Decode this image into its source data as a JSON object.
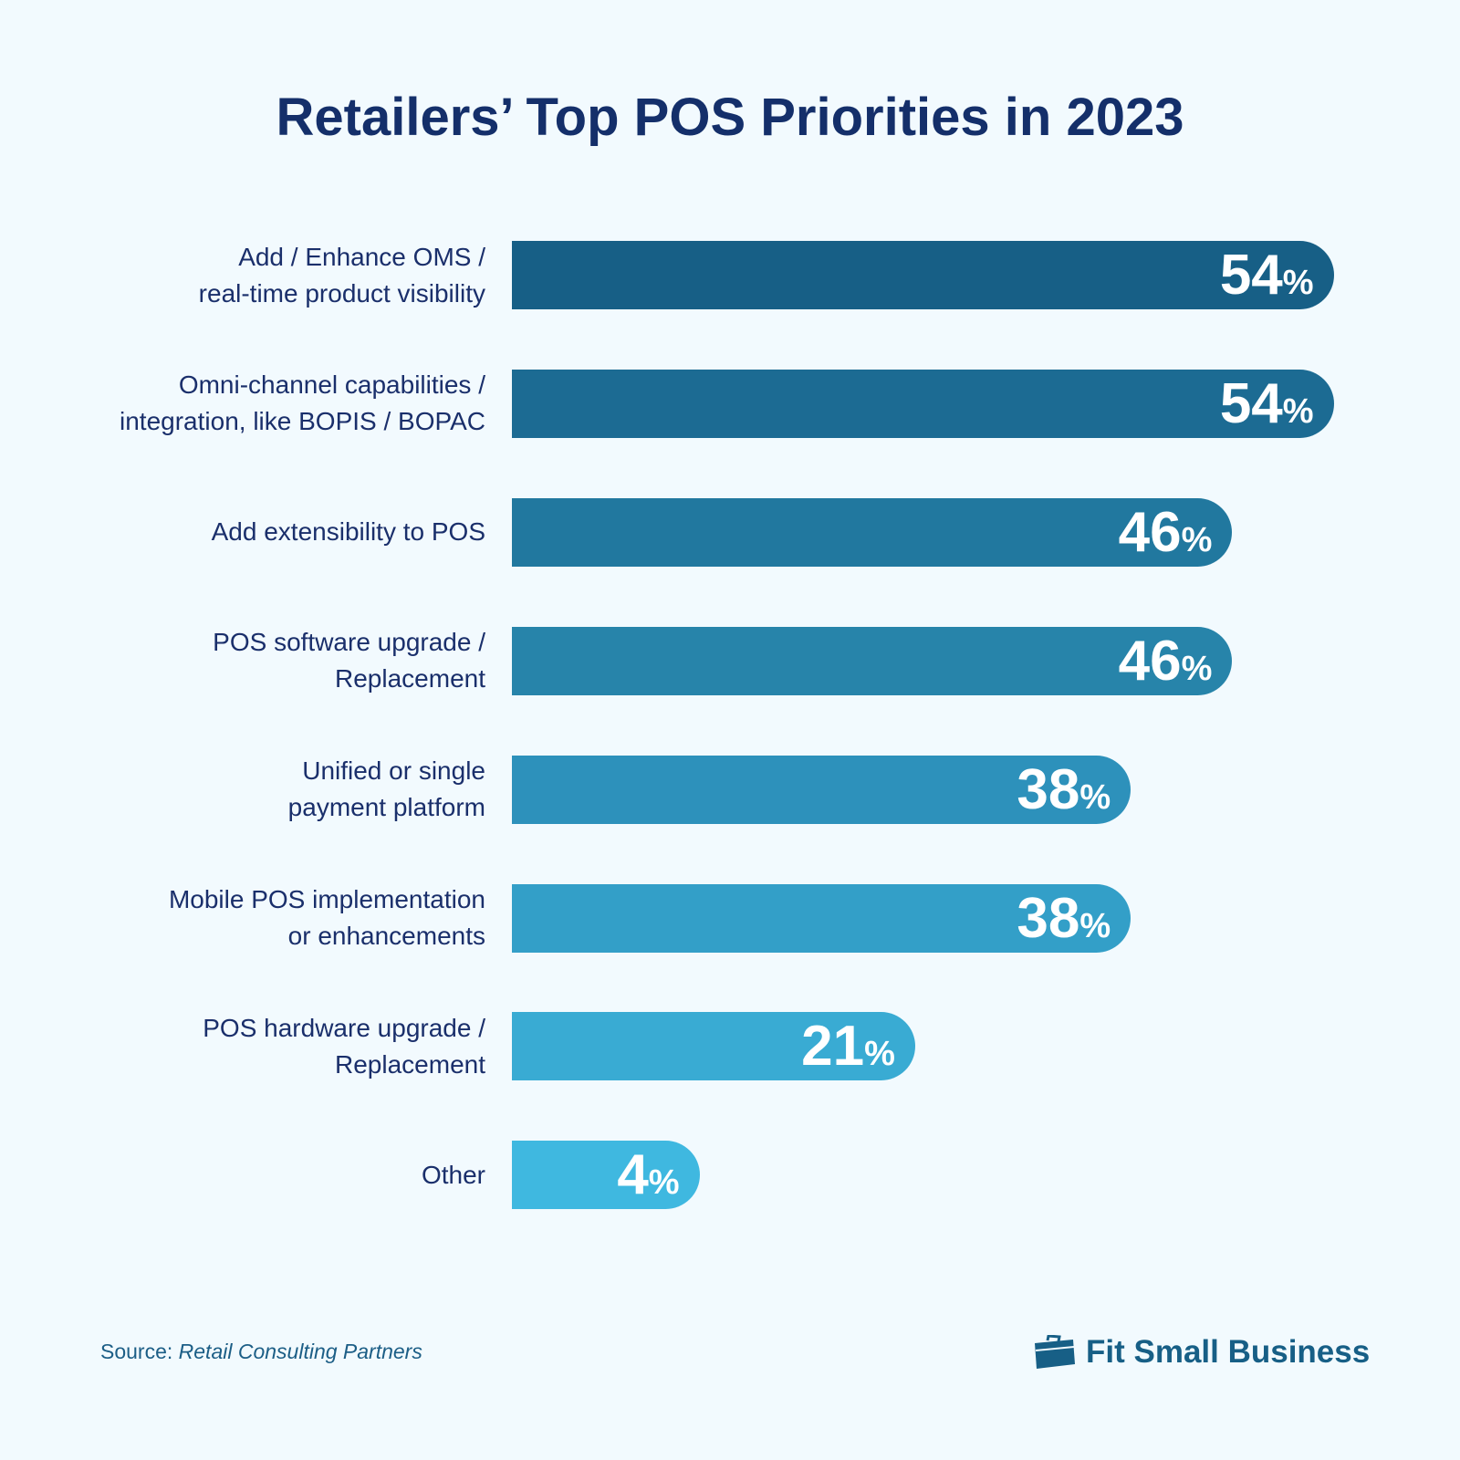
{
  "chart_data": {
    "type": "bar",
    "orientation": "horizontal",
    "title": "Retailers’ Top POS Priorities in 2023",
    "categories": [
      [
        "Add / Enhance OMS /",
        "real-time product visibility"
      ],
      [
        "Omni-channel capabilities /",
        "integration, like BOPIS / BOPAC"
      ],
      [
        "Add extensibility to POS"
      ],
      [
        "POS software upgrade /",
        "Replacement"
      ],
      [
        "Unified or single",
        "payment platform"
      ],
      [
        "Mobile POS implementation",
        "or enhancements"
      ],
      [
        "POS hardware upgrade /",
        "Replacement"
      ],
      [
        "Other"
      ]
    ],
    "values": [
      54,
      54,
      46,
      46,
      38,
      38,
      21,
      4
    ],
    "unit": "%",
    "colors": [
      "#175f86",
      "#1c6b93",
      "#21789f",
      "#2784aa",
      "#2d91bb",
      "#339fc8",
      "#39abd3",
      "#3fb8e0"
    ],
    "grid": false
  },
  "footer": {
    "source_prefix": "Source: ",
    "source_name": "Retail Consulting Partners",
    "brand": "Fit Small Business",
    "brand_icon": "briefcase-icon"
  }
}
